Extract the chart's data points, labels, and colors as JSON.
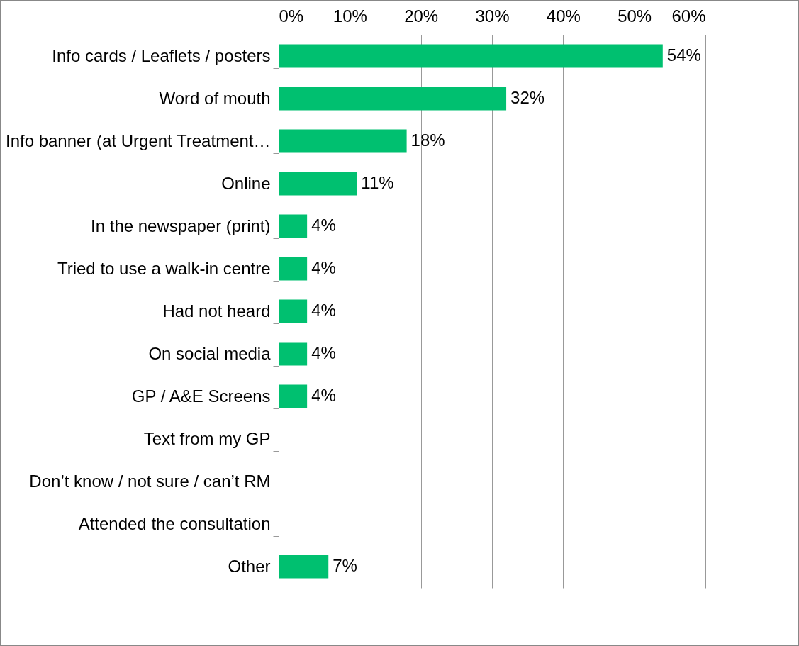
{
  "chart_data": {
    "type": "bar",
    "orientation": "horizontal",
    "categories": [
      "Info cards / Leaflets / posters",
      "Word of mouth",
      "Info banner (at Urgent Treatment…",
      "Online",
      "In the newspaper (print)",
      "Tried to use a walk-in centre",
      "Had not heard",
      "On social media",
      "GP / A&E Screens",
      "Text from my GP",
      "Don’t know / not sure / can’t RM",
      "Attended the consultation",
      "Other"
    ],
    "values": [
      54,
      32,
      18,
      11,
      4,
      4,
      4,
      4,
      4,
      null,
      null,
      null,
      7
    ],
    "value_labels": [
      "54%",
      "32%",
      "18%",
      "11%",
      "4%",
      "4%",
      "4%",
      "4%",
      "4%",
      null,
      null,
      null,
      "7%"
    ],
    "color": "#00c070",
    "xlim": [
      0,
      60
    ],
    "xticks": [
      {
        "value": 0,
        "label": "0%"
      },
      {
        "value": 10,
        "label": "10%"
      },
      {
        "value": 20,
        "label": "20%"
      },
      {
        "value": 30,
        "label": "30%"
      },
      {
        "value": 40,
        "label": "40%"
      },
      {
        "value": 50,
        "label": "50%"
      },
      {
        "value": 60,
        "label": "60%"
      }
    ],
    "grid": "x"
  }
}
